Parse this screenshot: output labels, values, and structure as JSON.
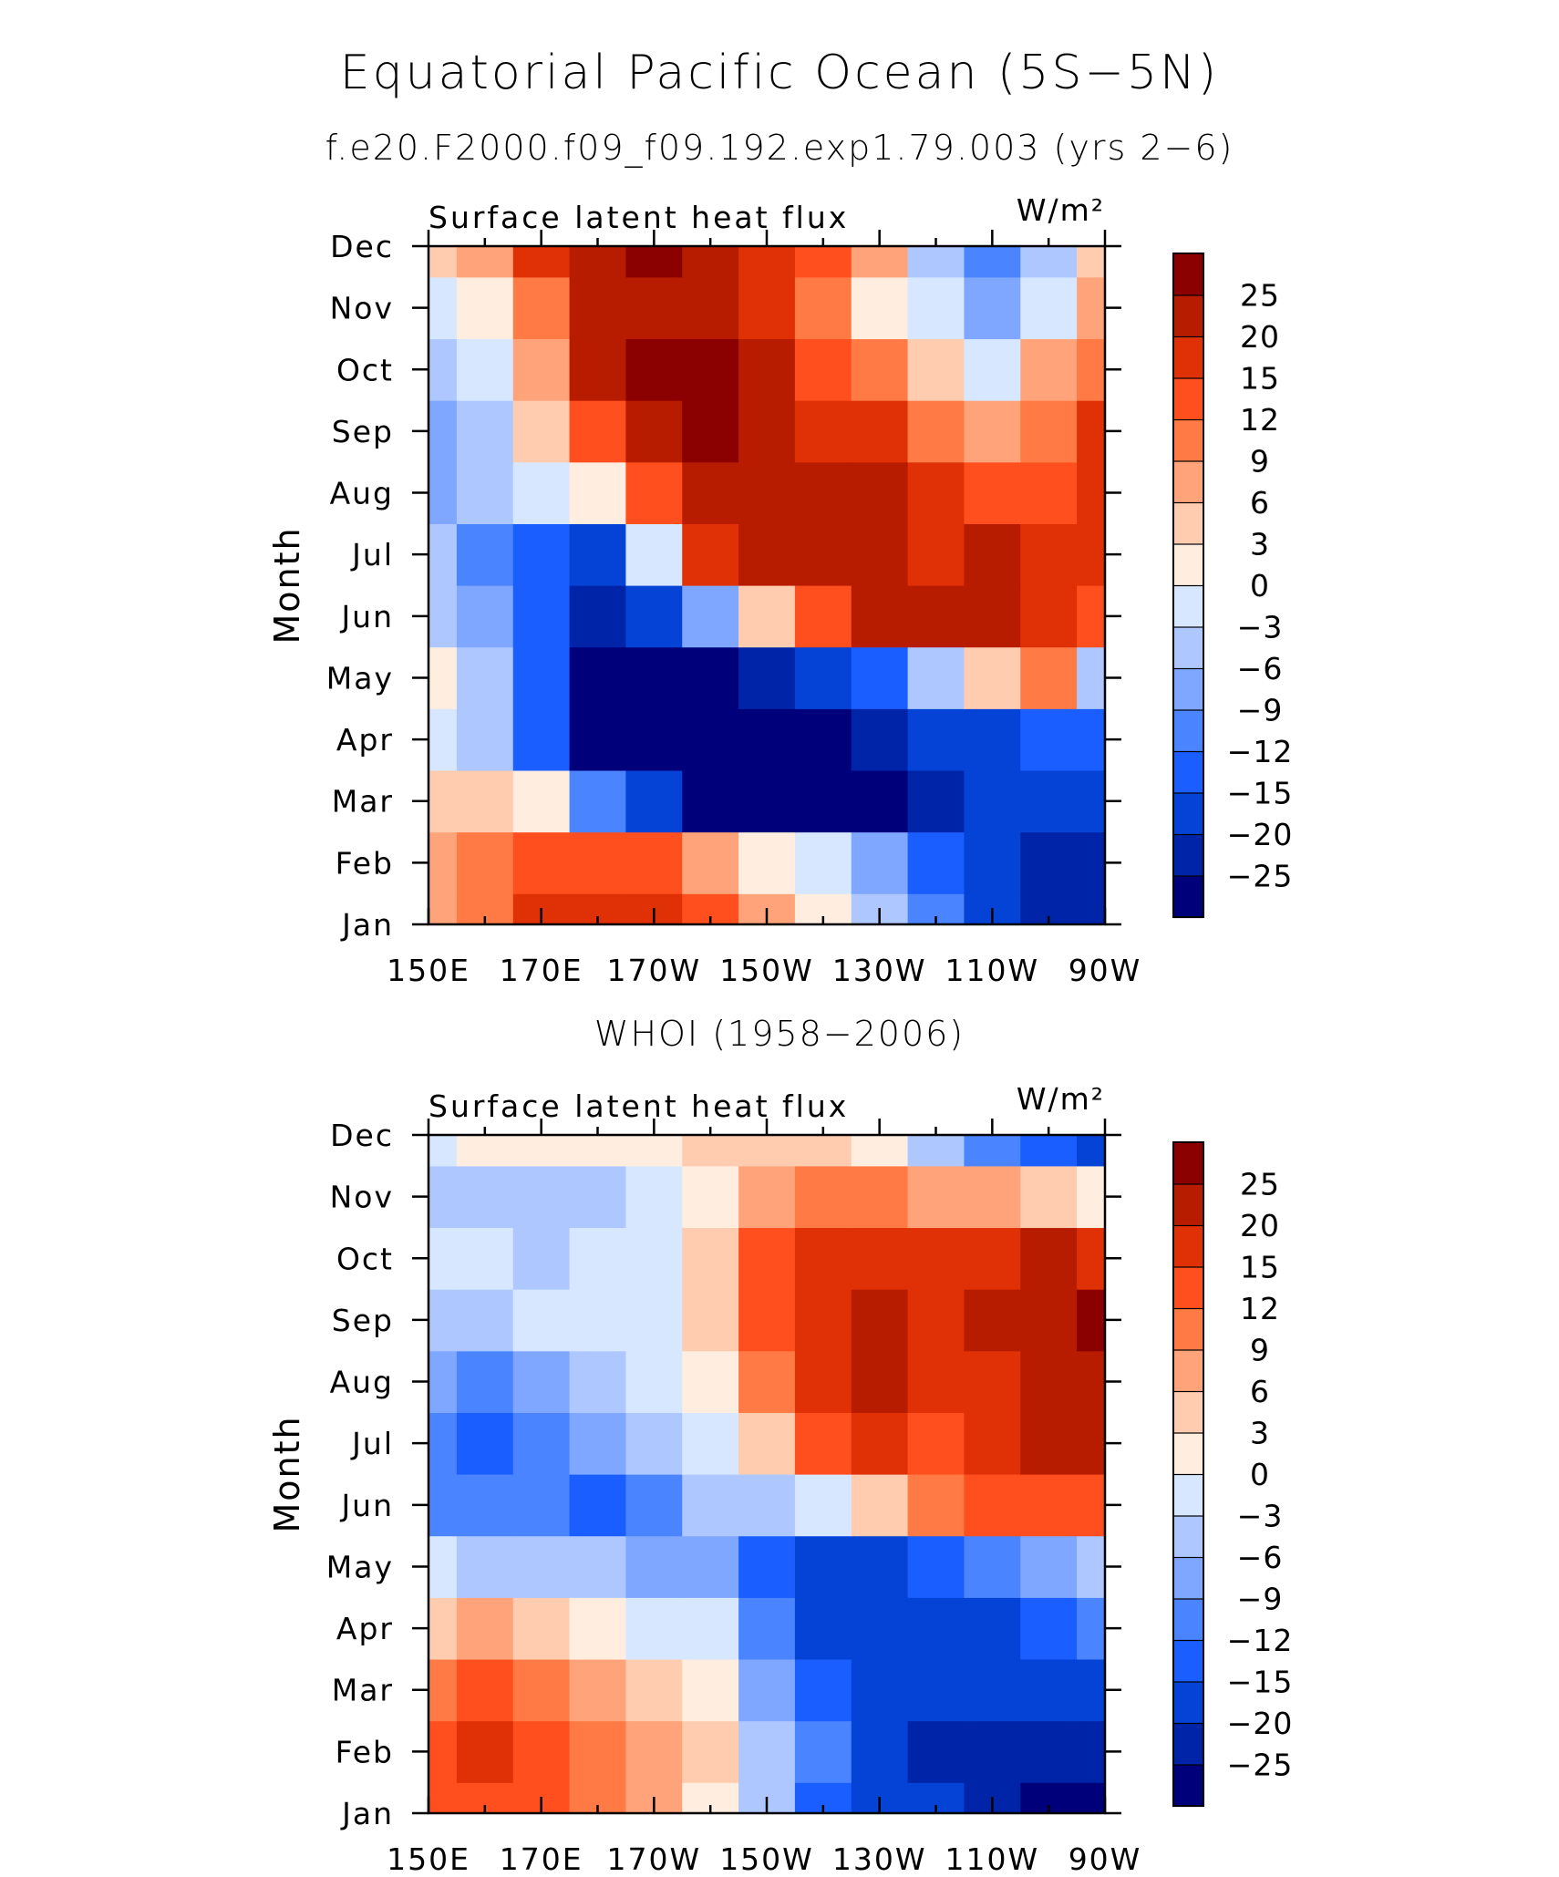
{
  "title": "Equatorial Pacific Ocean (5S−5N)",
  "subtitle": "f.e20.F2000.f09_f09.192.exp1.79.003 (yrs 2−6)",
  "second_title": "WHOI (1958−2006)",
  "colors": [
    "#00007a",
    "#0024a8",
    "#0542d6",
    "#1a5eff",
    "#4a84ff",
    "#7fa7ff",
    "#aec8ff",
    "#d7e7ff",
    "#ffeee0",
    "#ffccb0",
    "#ffa47a",
    "#ff7a45",
    "#ff4f1e",
    "#e03106",
    "#b81c00",
    "#8b0000"
  ],
  "chart_data": [
    {
      "type": "heatmap",
      "title": "Surface latent heat flux",
      "units": "W/m²",
      "ylabel": "Month",
      "x_ticks": [
        "150E",
        "170E",
        "170W",
        "150W",
        "130W",
        "110W",
        "90W"
      ],
      "y_ticks": [
        "Jan",
        "Feb",
        "Mar",
        "Apr",
        "May",
        "Jun",
        "Jul",
        "Aug",
        "Sep",
        "Oct",
        "Nov",
        "Dec"
      ],
      "colorbar_labels": [
        "−25",
        "−20",
        "−15",
        "−12",
        "−9",
        "−6",
        "−3",
        "0",
        "3",
        "6",
        "9",
        "12",
        "15",
        "20",
        "25"
      ],
      "levels": [
        -25,
        -20,
        -15,
        -12,
        -9,
        -6,
        -3,
        0,
        3,
        6,
        9,
        12,
        15,
        20,
        25
      ],
      "x_lon": [
        150,
        160,
        170,
        180,
        190,
        200,
        210,
        220,
        230,
        240,
        250,
        260,
        270
      ],
      "values": [
        [
          8,
          11,
          16,
          19,
          17,
          12,
          6,
          2,
          -5,
          -12,
          -18,
          -22,
          -22
        ],
        [
          7,
          9,
          12,
          14,
          12,
          8,
          2,
          -3,
          -8,
          -13,
          -17,
          -21,
          -21
        ],
        [
          3,
          4,
          0,
          -10,
          -20,
          -26,
          -27,
          -28,
          -27,
          -21,
          -17,
          -18,
          -19
        ],
        [
          -2,
          -5,
          -14,
          -26,
          -28,
          -29,
          -29,
          -28,
          -25,
          -20,
          -16,
          -14,
          -13
        ],
        [
          1,
          -6,
          -14,
          -26,
          -29,
          -28,
          -23,
          -17,
          -13,
          -5,
          3,
          10,
          -6
        ],
        [
          -4,
          -8,
          -14,
          -22,
          -19,
          -9,
          3,
          14,
          21,
          22,
          21,
          16,
          13
        ],
        [
          -6,
          -10,
          -15,
          -16,
          -2,
          15,
          22,
          23,
          20,
          19,
          21,
          19,
          17
        ],
        [
          -9,
          -6,
          -2,
          2,
          13,
          20,
          22,
          20,
          20,
          17,
          13,
          14,
          16
        ],
        [
          -8,
          -4,
          3,
          12,
          21,
          26,
          23,
          19,
          15,
          11,
          7,
          10,
          15
        ],
        [
          -5,
          -1,
          6,
          20,
          26,
          25,
          20,
          14,
          10,
          4,
          -2,
          6,
          10
        ],
        [
          -2,
          2,
          11,
          23,
          24,
          21,
          16,
          9,
          2,
          -3,
          -8,
          -2,
          8
        ],
        [
          3,
          6,
          16,
          24,
          26,
          22,
          18,
          12,
          6,
          -4,
          -10,
          -6,
          3
        ]
      ]
    },
    {
      "type": "heatmap",
      "title": "Surface latent heat flux",
      "units": "W/m²",
      "ylabel": "Month",
      "x_ticks": [
        "150E",
        "170E",
        "170W",
        "150W",
        "130W",
        "110W",
        "90W"
      ],
      "y_ticks": [
        "Jan",
        "Feb",
        "Mar",
        "Apr",
        "May",
        "Jun",
        "Jul",
        "Aug",
        "Sep",
        "Oct",
        "Nov",
        "Dec"
      ],
      "colorbar_labels": [
        "−25",
        "−20",
        "−15",
        "−12",
        "−9",
        "−6",
        "−3",
        "0",
        "3",
        "6",
        "9",
        "12",
        "15",
        "20",
        "25"
      ],
      "levels": [
        -25,
        -20,
        -15,
        -12,
        -9,
        -6,
        -3,
        0,
        3,
        6,
        9,
        12,
        15,
        20,
        25
      ],
      "x_lon": [
        150,
        160,
        170,
        180,
        190,
        200,
        210,
        220,
        230,
        240,
        250,
        260,
        270
      ],
      "values": [
        [
          12,
          14,
          12,
          10,
          7,
          2,
          -6,
          -13,
          -18,
          -20,
          -23,
          -26,
          -26
        ],
        [
          14,
          17,
          14,
          10,
          7,
          3,
          -4,
          -12,
          -17,
          -22,
          -24,
          -25,
          -23
        ],
        [
          10,
          12,
          10,
          7,
          5,
          1,
          -7,
          -14,
          -16,
          -17,
          -18,
          -19,
          -17
        ],
        [
          3,
          6,
          4,
          1,
          -1,
          -3,
          -12,
          -17,
          -17,
          -16,
          -16,
          -14,
          -10
        ],
        [
          -3,
          -4,
          -6,
          -6,
          -8,
          -9,
          -14,
          -18,
          -17,
          -15,
          -12,
          -9,
          -5
        ],
        [
          -12,
          -10,
          -12,
          -13,
          -11,
          -6,
          -6,
          -3,
          3,
          9,
          12,
          14,
          14
        ],
        [
          -12,
          -14,
          -10,
          -8,
          -5,
          -2,
          3,
          12,
          15,
          14,
          16,
          20,
          20
        ],
        [
          -8,
          -11,
          -8,
          -5,
          -2,
          1,
          10,
          16,
          21,
          15,
          18,
          21,
          20
        ],
        [
          -5,
          -5,
          -3,
          -3,
          -1,
          3,
          14,
          19,
          22,
          18,
          20,
          24,
          25
        ],
        [
          -3,
          -2,
          -4,
          -3,
          -2,
          4,
          12,
          17,
          18,
          16,
          18,
          20,
          16
        ],
        [
          -4,
          -5,
          -6,
          -5,
          -3,
          2,
          7,
          10,
          10,
          8,
          6,
          4,
          2
        ],
        [
          -2,
          0,
          2,
          0,
          1,
          3,
          4,
          4,
          2,
          -4,
          -10,
          -15,
          -20
        ]
      ]
    }
  ]
}
